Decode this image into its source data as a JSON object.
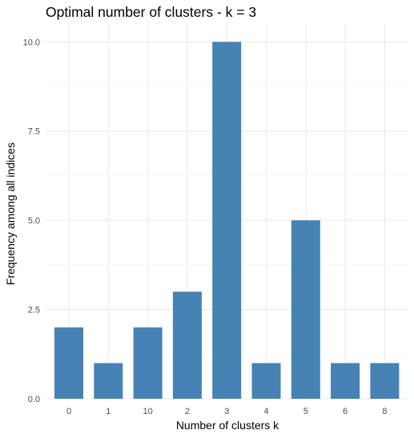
{
  "chart_data": {
    "type": "bar",
    "title": "Optimal number of clusters - k = 3",
    "xlabel": "Number of clusters k",
    "ylabel": "Frequency among all indices",
    "categories": [
      "0",
      "1",
      "10",
      "2",
      "3",
      "4",
      "5",
      "6",
      "8"
    ],
    "values": [
      2,
      1,
      2,
      3,
      10,
      1,
      5,
      1,
      1
    ],
    "ylim": [
      0,
      10.5
    ],
    "yticks": [
      "0.0",
      "2.5",
      "5.0",
      "7.5",
      "10.0"
    ],
    "ytick_values": [
      0,
      2.5,
      5,
      7.5,
      10
    ],
    "grid": true,
    "legend": "none",
    "colors": {
      "bar": "#4682b4",
      "grid_major": "#ebebeb",
      "grid_minor": "#f5f5f5",
      "tick_text": "#4d4d4d",
      "axis_title": "#000000"
    }
  }
}
